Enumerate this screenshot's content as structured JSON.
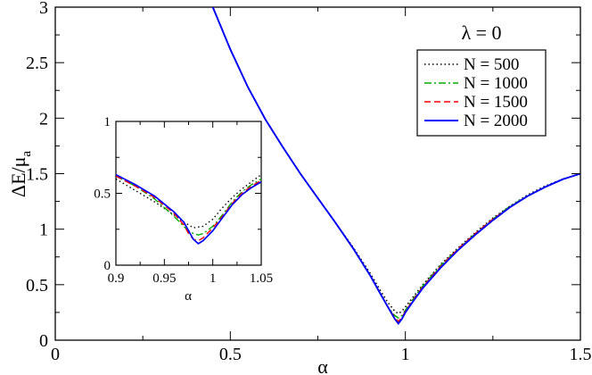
{
  "chart_data": [
    {
      "type": "line",
      "title": "",
      "xlabel": "α",
      "ylabel": "ΔE/μ",
      "ylabel_subscript": "a",
      "xlim": [
        0,
        1.5
      ],
      "ylim": [
        0,
        3
      ],
      "xticks": [
        "0",
        "0.5",
        "1",
        "1.5"
      ],
      "yticks": [
        "0",
        "0.5",
        "1",
        "1.5",
        "2",
        "2.5",
        "3"
      ],
      "grid": false,
      "legend": {
        "placement": "top-right",
        "title": "λ = 0",
        "entries": [
          "N = 500",
          "N = 1000",
          "N = 1500",
          "N = 2000"
        ]
      },
      "series": [
        {
          "name": "N = 500",
          "color": "#000000",
          "dash": "dotted",
          "x": [
            0.45,
            0.5,
            0.55,
            0.6,
            0.65,
            0.7,
            0.75,
            0.8,
            0.85,
            0.9,
            0.93,
            0.95,
            0.97,
            0.98,
            0.99,
            1.0,
            1.02,
            1.05,
            1.1,
            1.15,
            1.2,
            1.25,
            1.3,
            1.35,
            1.4,
            1.45,
            1.5
          ],
          "y": [
            3.0,
            2.62,
            2.28,
            1.99,
            1.74,
            1.5,
            1.28,
            1.06,
            0.84,
            0.6,
            0.44,
            0.34,
            0.26,
            0.24,
            0.26,
            0.3,
            0.38,
            0.5,
            0.68,
            0.83,
            0.97,
            1.1,
            1.21,
            1.31,
            1.39,
            1.45,
            1.5
          ]
        },
        {
          "name": "N = 1000",
          "color": "#00b000",
          "dash": "dashdot",
          "x": [
            0.45,
            0.5,
            0.55,
            0.6,
            0.65,
            0.7,
            0.75,
            0.8,
            0.85,
            0.9,
            0.93,
            0.95,
            0.97,
            0.98,
            0.99,
            1.0,
            1.02,
            1.05,
            1.1,
            1.15,
            1.2,
            1.25,
            1.3,
            1.35,
            1.4,
            1.45,
            1.5
          ],
          "y": [
            3.0,
            2.62,
            2.28,
            1.99,
            1.74,
            1.5,
            1.28,
            1.06,
            0.83,
            0.58,
            0.41,
            0.3,
            0.22,
            0.2,
            0.22,
            0.27,
            0.36,
            0.49,
            0.67,
            0.82,
            0.96,
            1.09,
            1.21,
            1.3,
            1.38,
            1.45,
            1.5
          ]
        },
        {
          "name": "N = 1500",
          "color": "#ff0000",
          "dash": "dashed",
          "x": [
            0.45,
            0.5,
            0.55,
            0.6,
            0.65,
            0.7,
            0.75,
            0.8,
            0.85,
            0.9,
            0.93,
            0.95,
            0.97,
            0.98,
            0.99,
            1.0,
            1.02,
            1.05,
            1.1,
            1.15,
            1.2,
            1.25,
            1.3,
            1.35,
            1.4,
            1.45,
            1.5
          ],
          "y": [
            3.0,
            2.62,
            2.28,
            1.99,
            1.74,
            1.5,
            1.28,
            1.06,
            0.83,
            0.58,
            0.41,
            0.3,
            0.2,
            0.17,
            0.2,
            0.26,
            0.35,
            0.48,
            0.66,
            0.82,
            0.96,
            1.09,
            1.2,
            1.3,
            1.38,
            1.45,
            1.5
          ]
        },
        {
          "name": "N = 2000",
          "color": "#0000ff",
          "dash": "solid",
          "x": [
            0.45,
            0.5,
            0.55,
            0.6,
            0.65,
            0.7,
            0.75,
            0.8,
            0.85,
            0.9,
            0.93,
            0.95,
            0.97,
            0.98,
            0.99,
            1.0,
            1.02,
            1.05,
            1.1,
            1.15,
            1.2,
            1.25,
            1.3,
            1.35,
            1.4,
            1.45,
            1.5
          ],
          "y": [
            3.0,
            2.62,
            2.28,
            1.99,
            1.74,
            1.5,
            1.28,
            1.06,
            0.83,
            0.58,
            0.41,
            0.3,
            0.19,
            0.15,
            0.19,
            0.25,
            0.34,
            0.47,
            0.65,
            0.81,
            0.95,
            1.08,
            1.2,
            1.3,
            1.38,
            1.45,
            1.5
          ]
        }
      ]
    },
    {
      "type": "line",
      "title": "",
      "xlabel": "α",
      "ylabel": "",
      "xlim": [
        0.9,
        1.05
      ],
      "ylim": [
        0,
        1
      ],
      "xticks": [
        "0.9",
        "0.95",
        "1",
        "1.05"
      ],
      "yticks": [
        "0",
        "0.5",
        "1"
      ],
      "grid": false,
      "series": [
        {
          "name": "N = 500",
          "color": "#000000",
          "dash": "dotted",
          "x": [
            0.9,
            0.92,
            0.94,
            0.96,
            0.97,
            0.975,
            0.98,
            0.99,
            1.0,
            1.01,
            1.02,
            1.03,
            1.04,
            1.05
          ],
          "y": [
            0.6,
            0.52,
            0.44,
            0.35,
            0.3,
            0.28,
            0.26,
            0.27,
            0.32,
            0.4,
            0.47,
            0.53,
            0.58,
            0.63
          ]
        },
        {
          "name": "N = 1000",
          "color": "#00b000",
          "dash": "dashdot",
          "x": [
            0.9,
            0.92,
            0.94,
            0.96,
            0.97,
            0.975,
            0.98,
            0.985,
            0.99,
            1.0,
            1.01,
            1.02,
            1.03,
            1.04,
            1.05
          ],
          "y": [
            0.62,
            0.55,
            0.46,
            0.34,
            0.27,
            0.24,
            0.22,
            0.21,
            0.22,
            0.27,
            0.35,
            0.44,
            0.51,
            0.56,
            0.6
          ]
        },
        {
          "name": "N = 1500",
          "color": "#ff0000",
          "dash": "dashed",
          "x": [
            0.9,
            0.92,
            0.94,
            0.96,
            0.97,
            0.975,
            0.98,
            0.985,
            0.99,
            1.0,
            1.01,
            1.02,
            1.03,
            1.04,
            1.05
          ],
          "y": [
            0.62,
            0.55,
            0.47,
            0.36,
            0.28,
            0.22,
            0.18,
            0.17,
            0.19,
            0.26,
            0.34,
            0.43,
            0.5,
            0.55,
            0.59
          ]
        },
        {
          "name": "N = 2000",
          "color": "#0000ff",
          "dash": "solid",
          "x": [
            0.9,
            0.92,
            0.94,
            0.96,
            0.97,
            0.975,
            0.98,
            0.985,
            0.99,
            1.0,
            1.01,
            1.02,
            1.03,
            1.04,
            1.05
          ],
          "y": [
            0.63,
            0.56,
            0.48,
            0.37,
            0.3,
            0.24,
            0.18,
            0.15,
            0.17,
            0.24,
            0.33,
            0.42,
            0.49,
            0.54,
            0.58
          ]
        }
      ]
    }
  ]
}
